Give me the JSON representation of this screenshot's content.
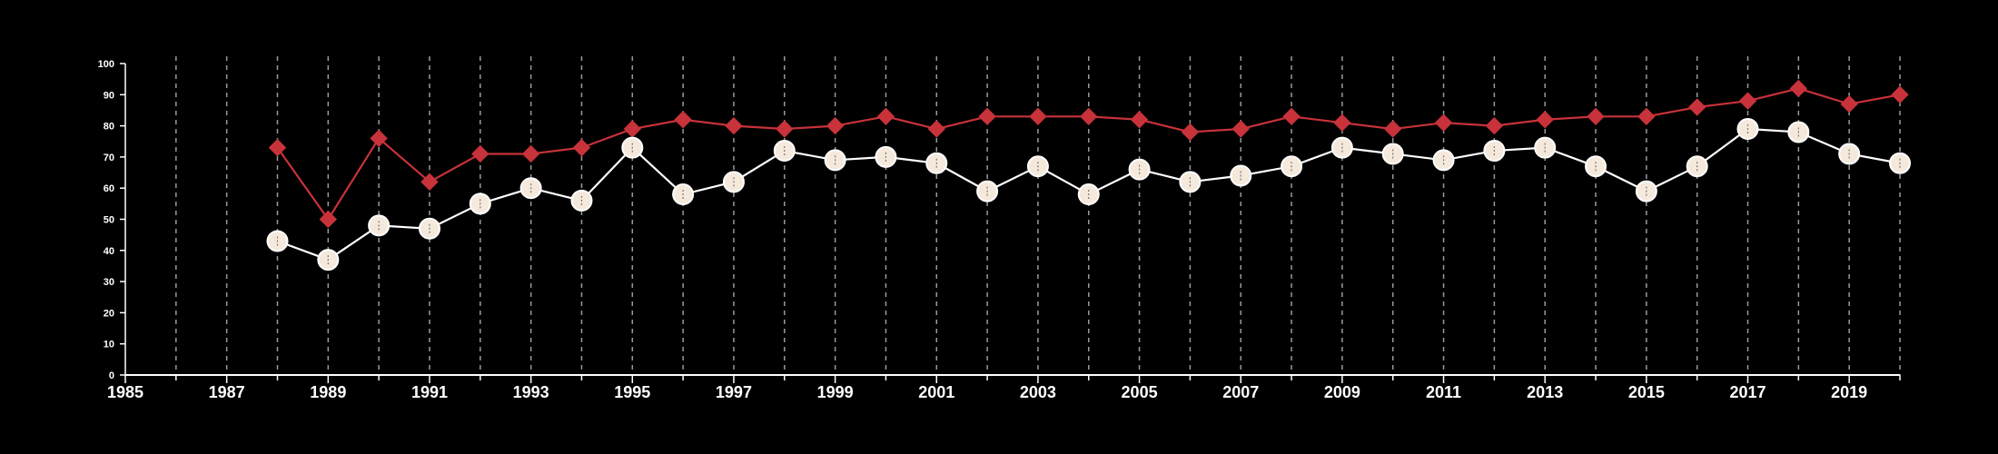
{
  "chart_data": {
    "type": "line",
    "title": "",
    "xlabel": "",
    "ylabel": "",
    "xlim": [
      1985,
      2020
    ],
    "ylim": [
      0,
      100
    ],
    "y_ticks": [
      0,
      10,
      20,
      30,
      40,
      50,
      60,
      70,
      80,
      90,
      100
    ],
    "x_tick_labels": [
      1985,
      1987,
      1989,
      1991,
      1993,
      1995,
      1997,
      1999,
      2001,
      2003,
      2005,
      2007,
      2009,
      2011,
      2013,
      2015,
      2017,
      2019
    ],
    "grid": "vertical dashed lines at each year",
    "legend": "none",
    "x": [
      1988,
      1989,
      1990,
      1991,
      1992,
      1993,
      1994,
      1995,
      1996,
      1997,
      1998,
      1999,
      2000,
      2001,
      2002,
      2003,
      2004,
      2005,
      2006,
      2007,
      2008,
      2009,
      2010,
      2011,
      2012,
      2013,
      2014,
      2015,
      2016,
      2017,
      2018,
      2019,
      2020
    ],
    "series": [
      {
        "marker": "diamond",
        "color": "#c8323a",
        "values": [
          73,
          50,
          76,
          62,
          71,
          71,
          73,
          79,
          82,
          80,
          79,
          80,
          83,
          79,
          83,
          83,
          83,
          82,
          78,
          79,
          83,
          81,
          79,
          81,
          80,
          82,
          83,
          83,
          86,
          88,
          92,
          87,
          90
        ]
      },
      {
        "marker": "circle",
        "color": "#ffffff",
        "fill": "#f5e9dc",
        "values": [
          43,
          37,
          48,
          47,
          55,
          60,
          56,
          73,
          58,
          62,
          72,
          69,
          70,
          68,
          59,
          67,
          58,
          66,
          62,
          64,
          67,
          73,
          71,
          69,
          72,
          73,
          67,
          59,
          67,
          79,
          78,
          71,
          68
        ]
      }
    ]
  },
  "style": {
    "background": "#000000",
    "axis_color": "#ffffff",
    "grid_color": "#9a9a9a",
    "text_color": "#ffffff"
  }
}
